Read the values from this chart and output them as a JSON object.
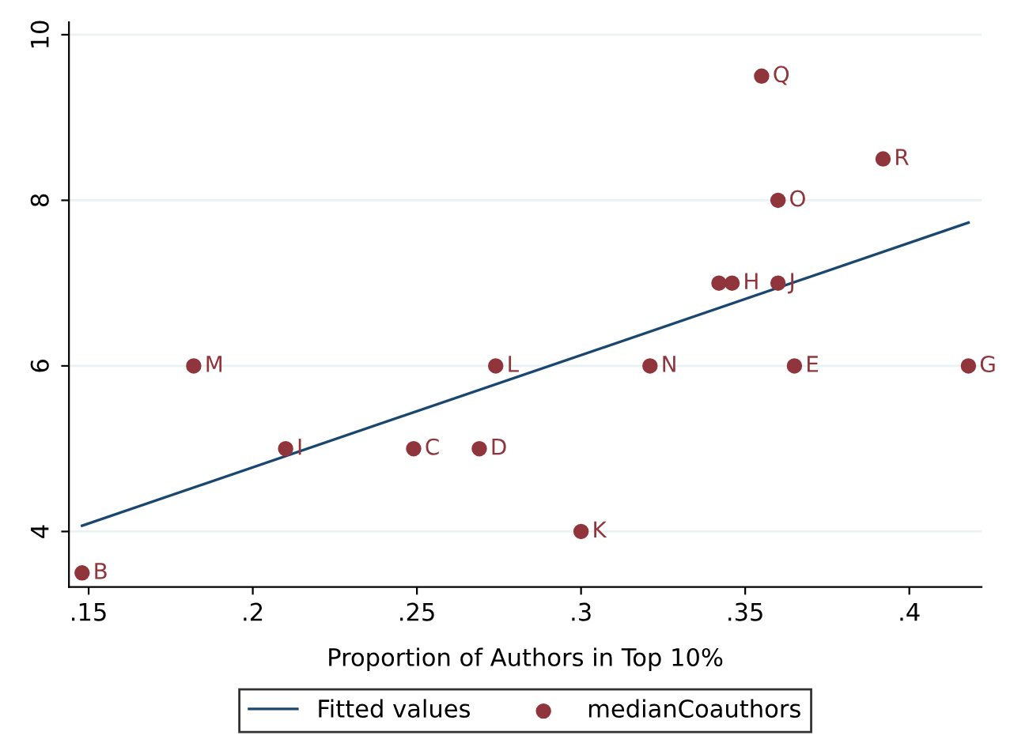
{
  "chart_data": {
    "type": "scatter",
    "xlabel": "Proportion of Authors in Top 10%",
    "xlim": [
      0.144,
      0.422
    ],
    "xticks": [
      {
        "value": 0.15,
        "label": ".15"
      },
      {
        "value": 0.2,
        "label": ".2"
      },
      {
        "value": 0.25,
        "label": ".25"
      },
      {
        "value": 0.3,
        "label": ".3"
      },
      {
        "value": 0.35,
        "label": ".35"
      },
      {
        "value": 0.4,
        "label": ".4"
      }
    ],
    "ylim": [
      3.33,
      10.15
    ],
    "yticks": [
      4,
      6,
      8,
      10
    ],
    "grid": "y",
    "legend": "bottom",
    "series": [
      {
        "name": "Fitted values",
        "type": "line",
        "color": "#1a476f",
        "marker": "none",
        "x": [
          0.148,
          0.418
        ],
        "values": [
          4.07,
          7.73
        ]
      },
      {
        "name": "medianCoauthors",
        "color": "#90353b",
        "marker": "circle",
        "x": [
          0.148,
          0.182,
          0.21,
          0.249,
          0.269,
          0.274,
          0.3,
          0.321,
          0.342,
          0.346,
          0.355,
          0.36,
          0.36,
          0.365,
          0.392,
          0.418
        ],
        "values": [
          3.5,
          6,
          5,
          5,
          5,
          6,
          4,
          6,
          7,
          7,
          9.5,
          8,
          7,
          6,
          8.5,
          6
        ],
        "value_labels": [
          "B",
          "M",
          "I",
          "C",
          "D",
          "L",
          "K",
          "N",
          null,
          "H",
          "Q",
          "O",
          "J",
          "E",
          "R",
          "G"
        ]
      }
    ]
  }
}
